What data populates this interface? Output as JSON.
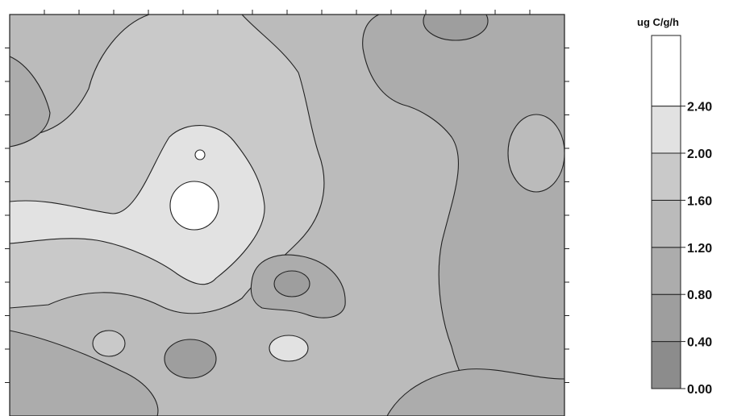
{
  "chart_data": {
    "type": "heatmap",
    "subtype": "filled-contour",
    "title": "",
    "xlabel": "",
    "ylabel": "",
    "colorbar": {
      "unit": "ug C/g/h",
      "levels": [
        "0.00",
        "0.40",
        "0.80",
        "1.20",
        "1.60",
        "2.00",
        "2.40"
      ],
      "level_values": [
        0.0,
        0.4,
        0.8,
        1.2,
        1.6,
        2.0,
        2.4
      ],
      "band_colors": [
        "#8c8c8c",
        "#9e9e9e",
        "#acacac",
        "#bbbbbb",
        "#c9c9c9",
        "#e2e2e2",
        "#ffffff"
      ]
    },
    "legend_position": "right",
    "grid": false
  }
}
